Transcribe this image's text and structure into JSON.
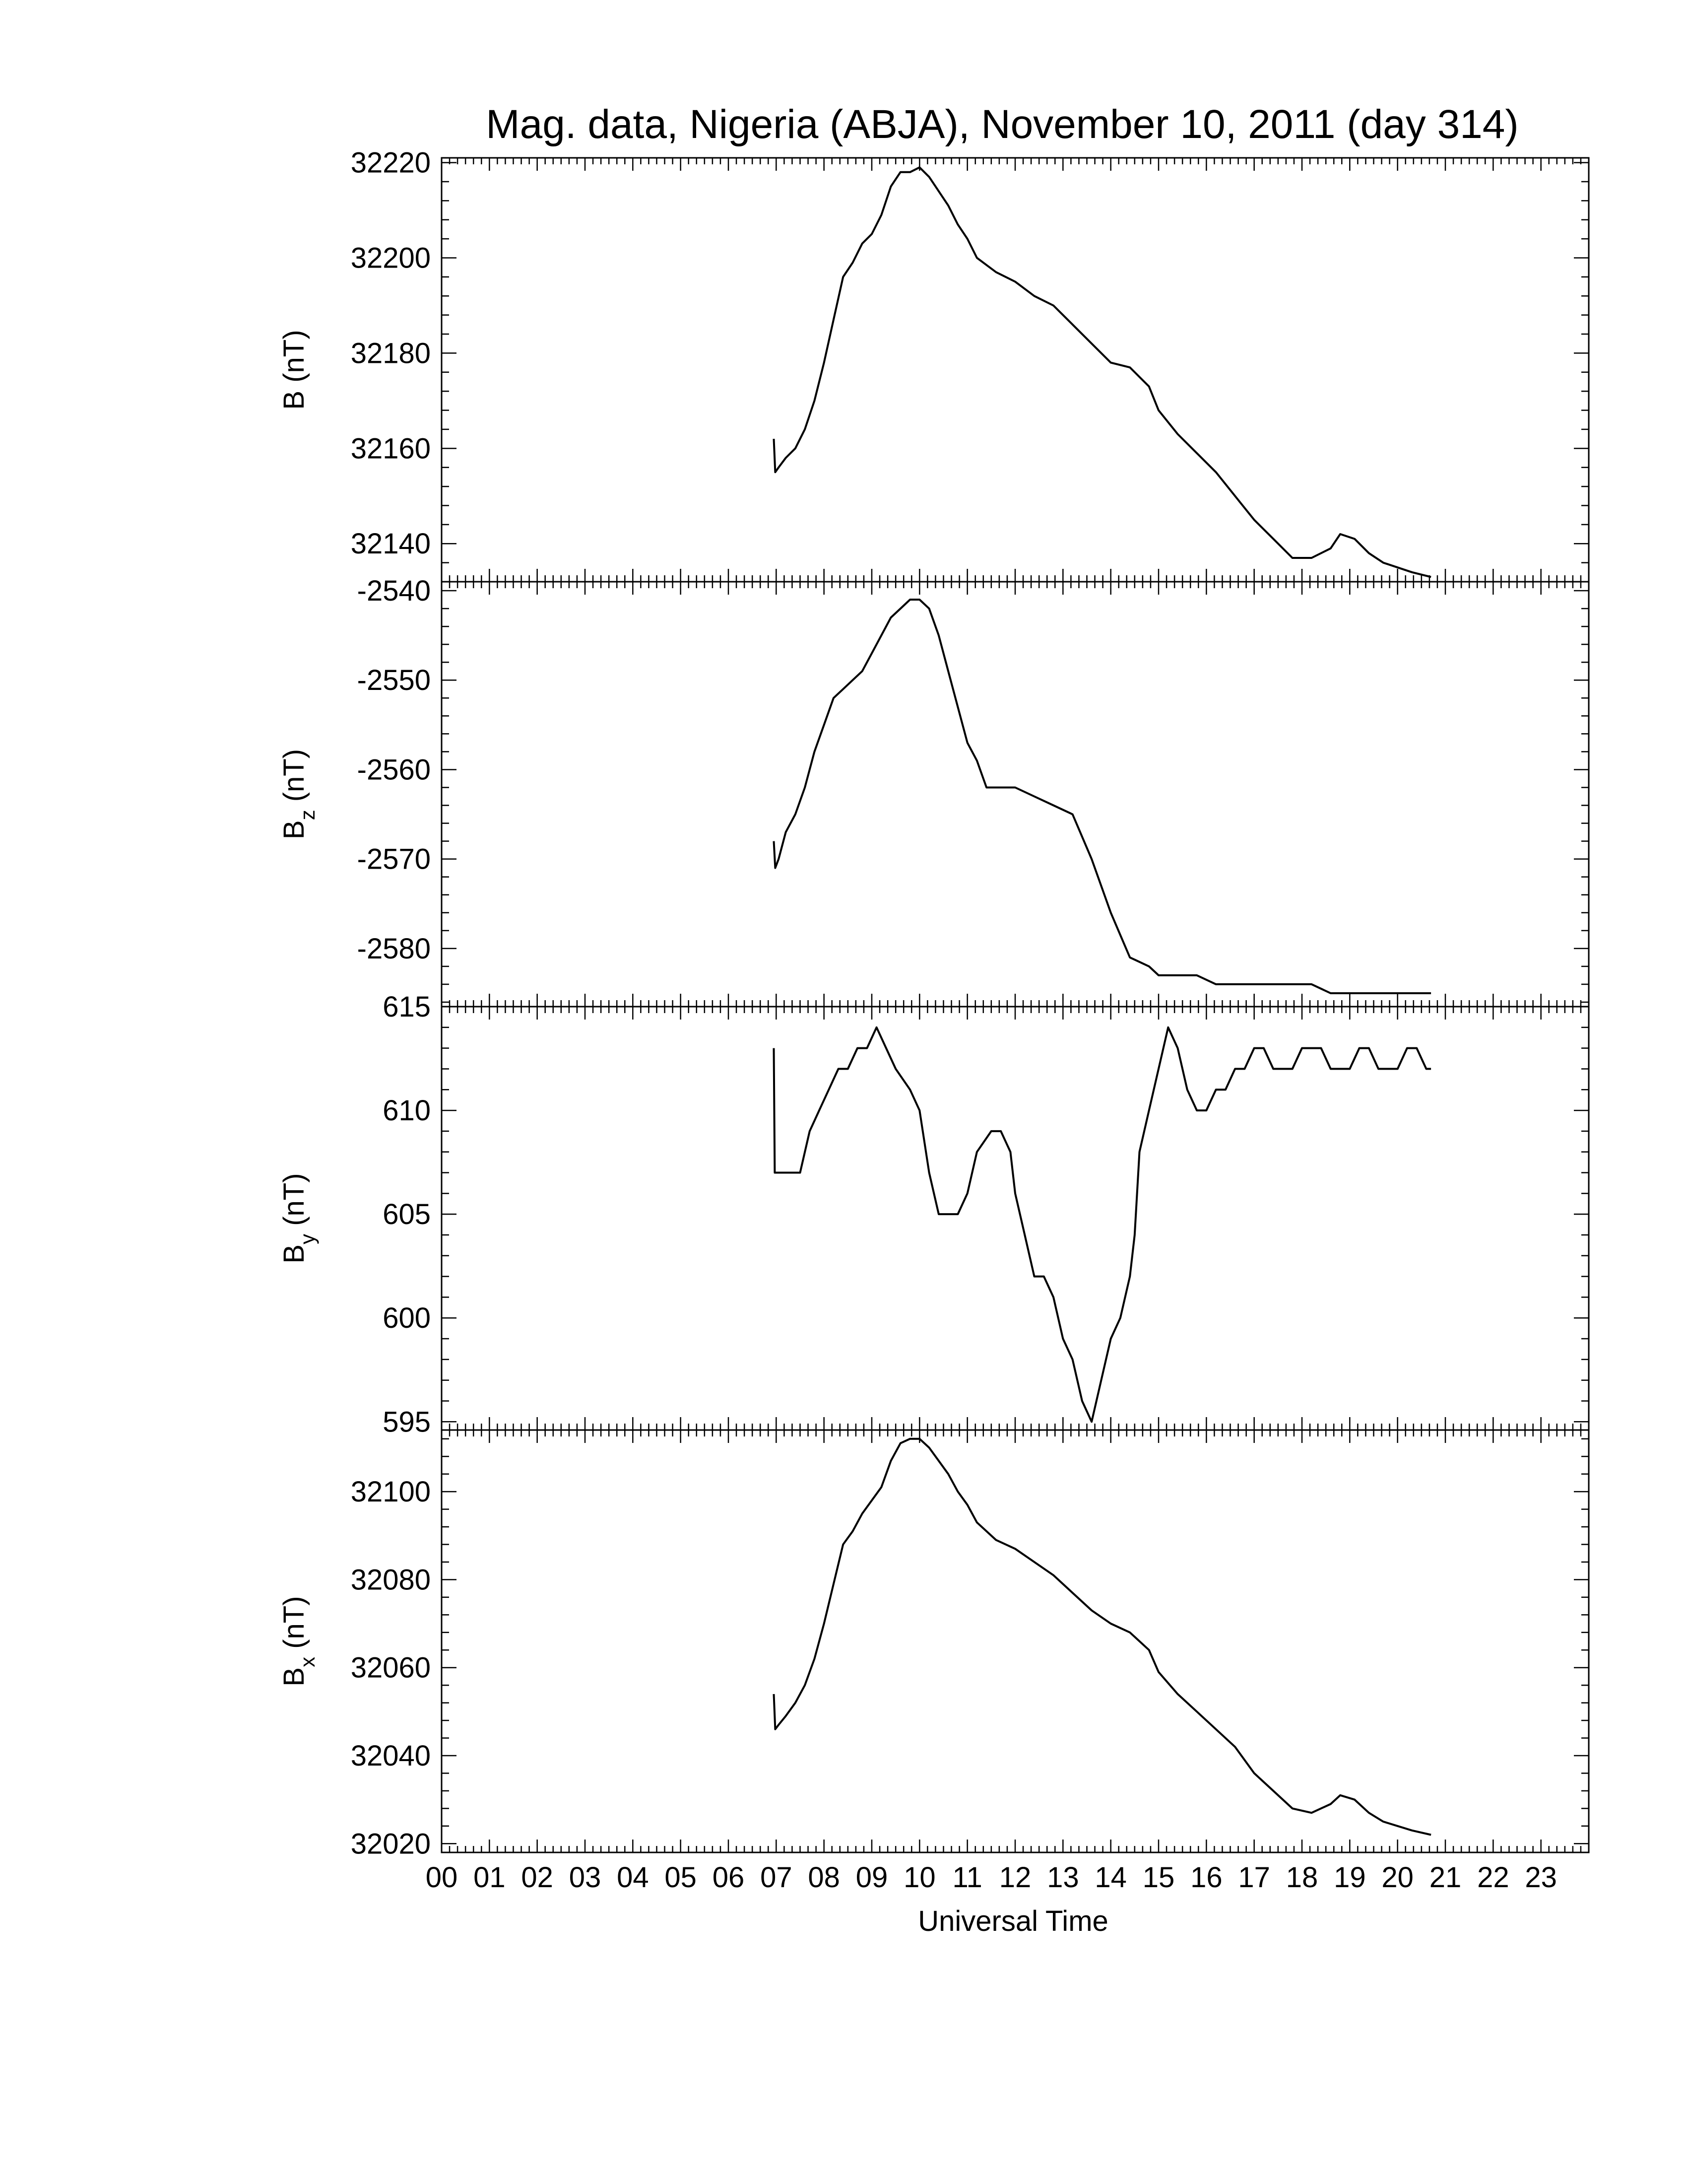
{
  "chart_data": {
    "type": "line",
    "title": "Mag. data, Nigeria (ABJA), November 10, 2011 (day 314)",
    "xlabel": "Universal Time",
    "xlim": [
      0,
      24
    ],
    "x_tick_labels": [
      "00",
      "01",
      "02",
      "03",
      "04",
      "05",
      "06",
      "07",
      "08",
      "09",
      "10",
      "11",
      "12",
      "13",
      "14",
      "15",
      "16",
      "17",
      "18",
      "19",
      "20",
      "21",
      "22",
      "23"
    ],
    "grid": false,
    "panels": [
      {
        "ylabel": "B",
        "ylabel_sub": "",
        "ylabel_unit": "(nT)",
        "ylim": [
          32132,
          32221
        ],
        "yticks": [
          "32220",
          "32200",
          "32180",
          "32160",
          "32140"
        ],
        "yticks_values": [
          32220,
          32200,
          32180,
          32160,
          32140
        ],
        "x": [
          6.95,
          6.98,
          7.05,
          7.2,
          7.4,
          7.6,
          7.8,
          8.0,
          8.2,
          8.4,
          8.6,
          8.8,
          9.0,
          9.2,
          9.4,
          9.6,
          9.8,
          10.0,
          10.2,
          10.4,
          10.6,
          10.8,
          11.0,
          11.2,
          11.6,
          12.0,
          12.4,
          12.8,
          13.2,
          13.6,
          14.0,
          14.4,
          14.8,
          15.0,
          15.4,
          15.8,
          16.2,
          16.6,
          17.0,
          17.4,
          17.8,
          18.2,
          18.6,
          18.8,
          19.1,
          19.4,
          19.7,
          20.0,
          20.3,
          20.7
        ],
        "y": [
          32162,
          32155,
          32156,
          32158,
          32160,
          32164,
          32170,
          32178,
          32187,
          32196,
          32199,
          32203,
          32205,
          32209,
          32215,
          32218,
          32218,
          32219,
          32217,
          32214,
          32211,
          32207,
          32204,
          32200,
          32197,
          32195,
          32192,
          32190,
          32186,
          32182,
          32178,
          32177,
          32173,
          32168,
          32163,
          32159,
          32155,
          32150,
          32145,
          32141,
          32137,
          32137,
          32139,
          32142,
          32141,
          32138,
          32136,
          32135,
          32134,
          32133
        ]
      },
      {
        "ylabel": "B",
        "ylabel_sub": "z",
        "ylabel_unit": "(nT)",
        "ylim": [
          -2586.5,
          -2539
        ],
        "yticks": [
          "-2540",
          "-2550",
          "-2560",
          "-2570",
          "-2580"
        ],
        "yticks_values": [
          -2540,
          -2550,
          -2560,
          -2570,
          -2580
        ],
        "x": [
          6.95,
          6.98,
          7.05,
          7.2,
          7.4,
          7.6,
          7.8,
          8.0,
          8.2,
          8.4,
          8.6,
          8.8,
          9.0,
          9.2,
          9.4,
          9.6,
          9.8,
          10.0,
          10.2,
          10.4,
          10.6,
          10.8,
          11.0,
          11.2,
          11.4,
          11.6,
          11.8,
          12.0,
          12.4,
          12.8,
          13.2,
          13.6,
          14.0,
          14.4,
          14.8,
          15.0,
          15.4,
          15.8,
          16.2,
          16.6,
          17.0,
          17.4,
          17.8,
          18.2,
          18.6,
          19.0,
          19.5,
          20.0,
          20.4,
          20.7
        ],
        "y": [
          -2568,
          -2571,
          -2570,
          -2567,
          -2565,
          -2562,
          -2558,
          -2555,
          -2552,
          -2551,
          -2550,
          -2549,
          -2547,
          -2545,
          -2543,
          -2542,
          -2541,
          -2541,
          -2542,
          -2545,
          -2549,
          -2553,
          -2557,
          -2559,
          -2562,
          -2562,
          -2562,
          -2562,
          -2563,
          -2564,
          -2565,
          -2570,
          -2576,
          -2581,
          -2582,
          -2583,
          -2583,
          -2583,
          -2584,
          -2584,
          -2584,
          -2584,
          -2584,
          -2584,
          -2585,
          -2585,
          -2585,
          -2585,
          -2585,
          -2585
        ]
      },
      {
        "ylabel": "B",
        "ylabel_sub": "y",
        "ylabel_unit": "(nT)",
        "ylim": [
          594.6,
          615
        ],
        "yticks": [
          "615",
          "610",
          "605",
          "600",
          "595"
        ],
        "yticks_values": [
          615,
          610,
          605,
          600,
          595
        ],
        "x": [
          6.95,
          6.97,
          7.0,
          7.1,
          7.3,
          7.5,
          7.7,
          7.9,
          8.1,
          8.3,
          8.5,
          8.7,
          8.9,
          9.1,
          9.3,
          9.5,
          9.8,
          10.0,
          10.2,
          10.4,
          10.6,
          10.8,
          11.0,
          11.2,
          11.5,
          11.7,
          11.9,
          12.0,
          12.2,
          12.4,
          12.6,
          12.8,
          13.0,
          13.2,
          13.4,
          13.6,
          13.8,
          14.0,
          14.2,
          14.4,
          14.5,
          14.6,
          14.8,
          15.0,
          15.2,
          15.4,
          15.6,
          15.8,
          16.0,
          16.2,
          16.4,
          16.6,
          16.8,
          17.0,
          17.2,
          17.4,
          17.6,
          17.8,
          18.0,
          18.2,
          18.4,
          18.6,
          18.8,
          19.0,
          19.2,
          19.4,
          19.6,
          19.8,
          20.0,
          20.2,
          20.4,
          20.6,
          20.7
        ],
        "y": [
          613,
          607,
          607,
          607,
          607,
          607,
          609,
          610,
          611,
          612,
          612,
          613,
          613,
          614,
          613,
          612,
          611,
          610,
          607,
          605,
          605,
          605,
          606,
          608,
          609,
          609,
          608,
          606,
          604,
          602,
          602,
          601,
          599,
          598,
          596,
          595,
          597,
          599,
          600,
          602,
          604,
          608,
          610,
          612,
          614,
          613,
          611,
          610,
          610,
          611,
          611,
          612,
          612,
          613,
          613,
          612,
          612,
          612,
          613,
          613,
          613,
          612,
          612,
          612,
          613,
          613,
          612,
          612,
          612,
          613,
          613,
          612,
          612
        ]
      },
      {
        "ylabel": "B",
        "ylabel_sub": "x",
        "ylabel_unit": "(nT)",
        "ylim": [
          32018,
          32114
        ],
        "yticks": [
          "32100",
          "32080",
          "32060",
          "32040",
          "32020"
        ],
        "yticks_values": [
          32100,
          32080,
          32060,
          32040,
          32020
        ],
        "x": [
          6.95,
          6.98,
          7.05,
          7.2,
          7.4,
          7.6,
          7.8,
          8.0,
          8.2,
          8.4,
          8.6,
          8.8,
          9.0,
          9.2,
          9.4,
          9.6,
          9.8,
          10.0,
          10.2,
          10.4,
          10.6,
          10.8,
          11.0,
          11.2,
          11.6,
          12.0,
          12.4,
          12.8,
          13.2,
          13.6,
          14.0,
          14.4,
          14.8,
          15.0,
          15.4,
          15.8,
          16.2,
          16.6,
          17.0,
          17.4,
          17.8,
          18.2,
          18.6,
          18.8,
          19.1,
          19.4,
          19.7,
          20.0,
          20.3,
          20.7
        ],
        "y": [
          32054,
          32046,
          32047,
          32049,
          32052,
          32056,
          32062,
          32070,
          32079,
          32088,
          32091,
          32095,
          32098,
          32101,
          32107,
          32111,
          32112,
          32112,
          32110,
          32107,
          32104,
          32100,
          32097,
          32093,
          32089,
          32087,
          32084,
          32081,
          32077,
          32073,
          32070,
          32068,
          32064,
          32059,
          32054,
          32050,
          32046,
          32042,
          32036,
          32032,
          32028,
          32027,
          32029,
          32031,
          32030,
          32027,
          32025,
          32024,
          32023,
          32022
        ]
      }
    ]
  }
}
